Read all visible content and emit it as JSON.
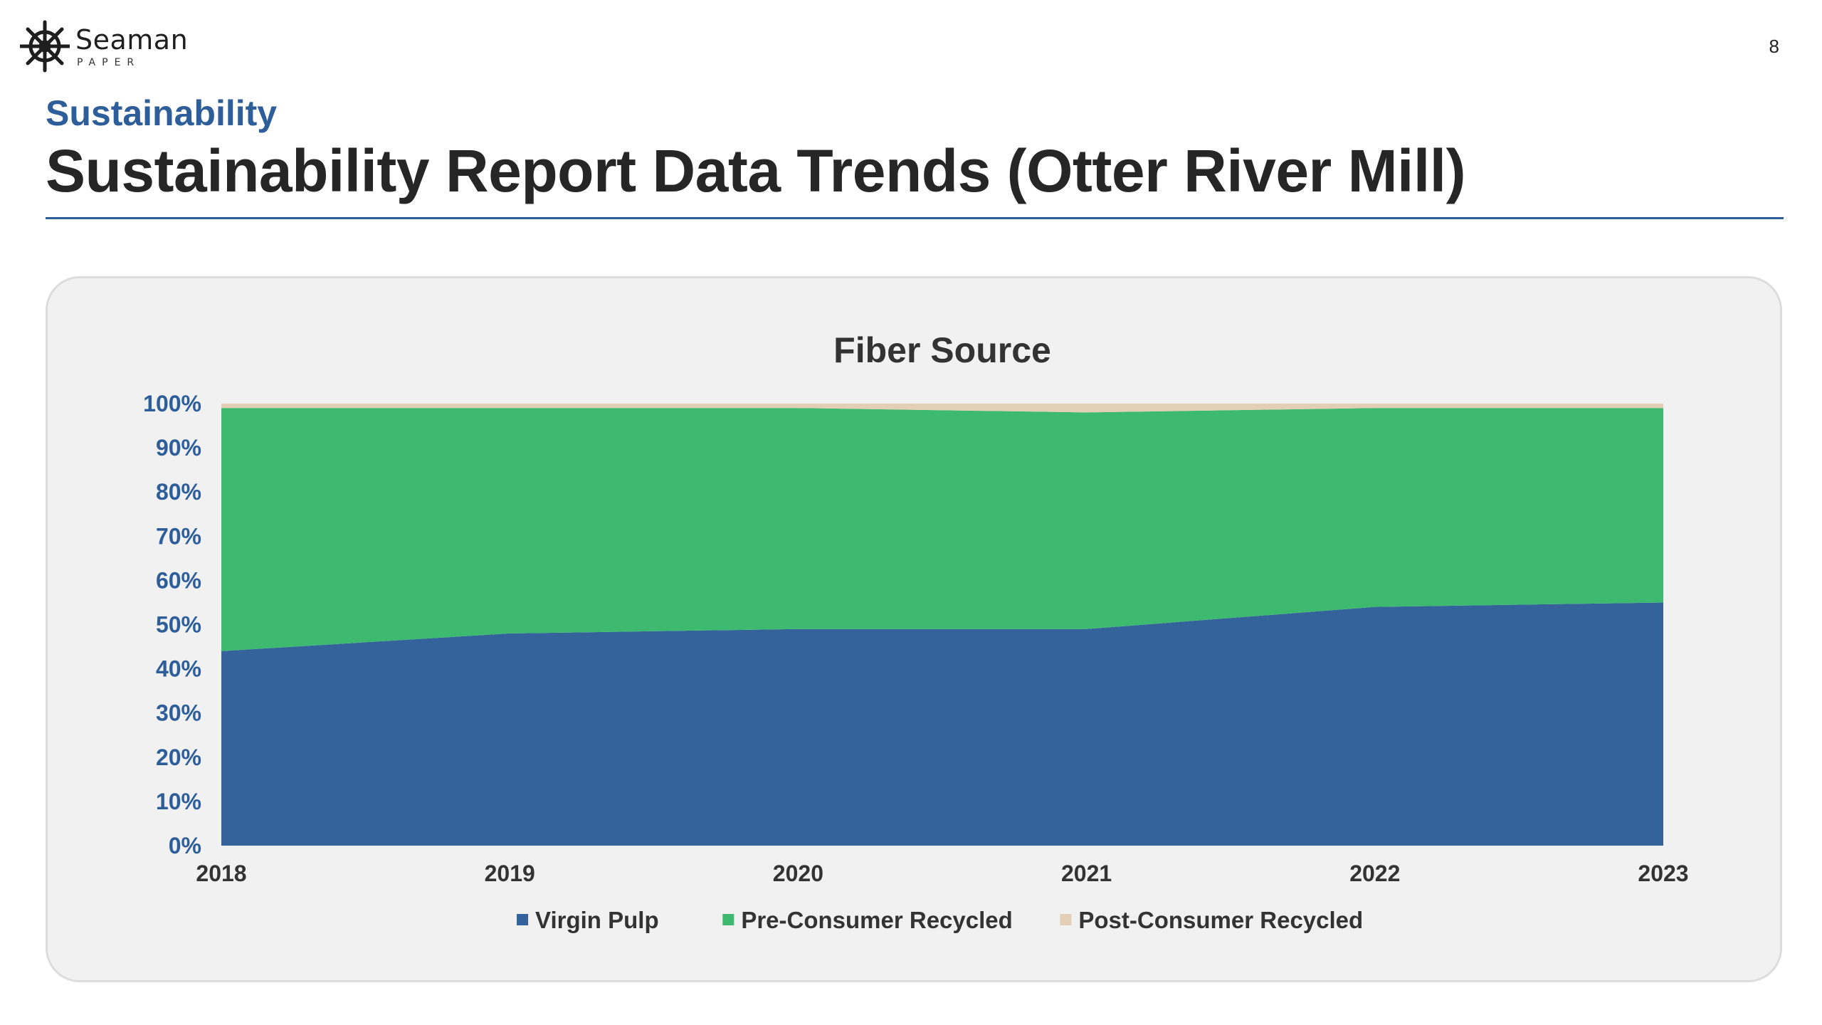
{
  "header": {
    "logo_text": "Seaman",
    "logo_subtext": "PAPER",
    "page_number": "8",
    "section": "Sustainability",
    "title": "Sustainability Report Data Trends (Otter River Mill)"
  },
  "colors": {
    "accent": "#2e5e9a",
    "virgin_pulp": "#33639a",
    "pre_consumer": "#3dba6f",
    "post_consumer": "#e3cfb4"
  },
  "chart_data": {
    "type": "area",
    "stacked": true,
    "title": "Fiber Source",
    "x": [
      "2018",
      "2019",
      "2020",
      "2021",
      "2022",
      "2023"
    ],
    "series": [
      {
        "name": "Virgin Pulp",
        "color": "#33639a",
        "values": [
          44,
          48,
          49,
          49,
          54,
          55
        ]
      },
      {
        "name": "Pre-Consumer Recycled",
        "color": "#3dba6f",
        "values": [
          55,
          51,
          50,
          49,
          45,
          44
        ]
      },
      {
        "name": "Post-Consumer Recycled",
        "color": "#e3cfb4",
        "values": [
          1,
          1,
          1,
          2,
          1,
          1
        ]
      }
    ],
    "ylim": [
      0,
      100
    ],
    "yticks": [
      "0%",
      "10%",
      "20%",
      "30%",
      "40%",
      "50%",
      "60%",
      "70%",
      "80%",
      "90%",
      "100%"
    ],
    "legend_position": "bottom",
    "grid": false
  }
}
